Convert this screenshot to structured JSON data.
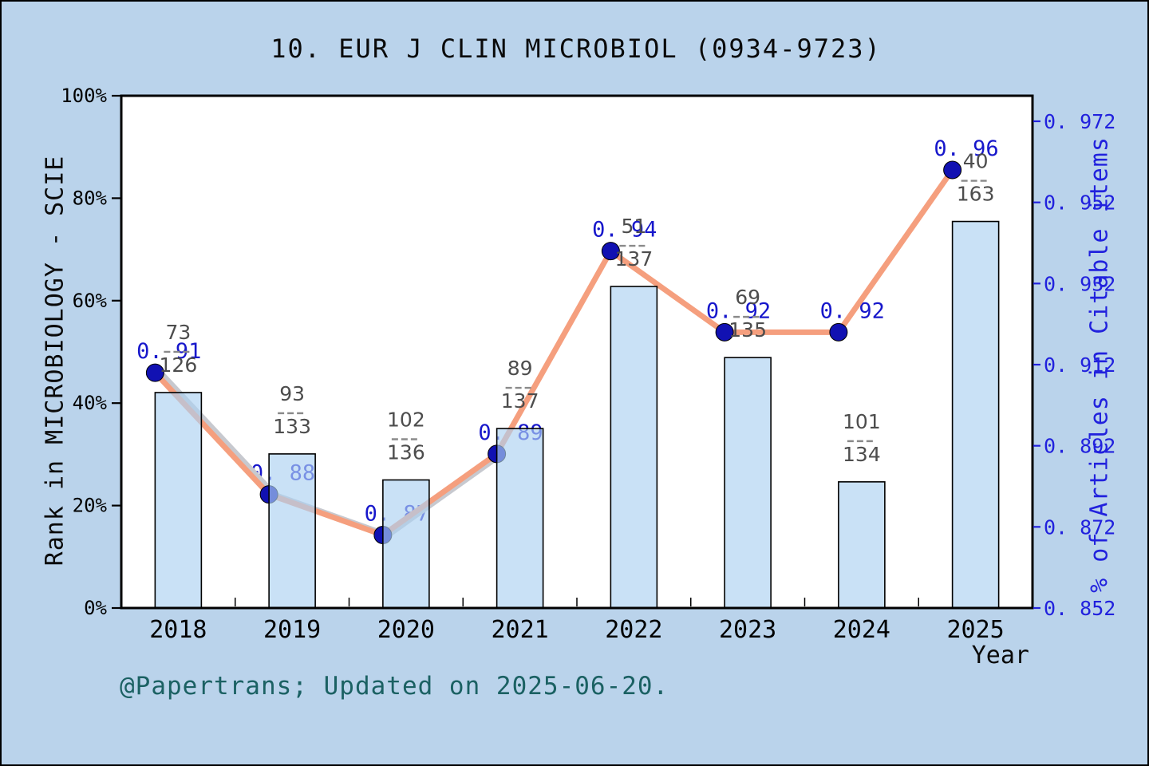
{
  "title": "10. EUR J CLIN MICROBIOL (0934-9723)",
  "footer": "@Papertrans; Updated on 2025-06-20.",
  "chart_data": {
    "type": "bar+line",
    "title": "10. EUR J CLIN MICROBIOL (0934-9723)",
    "xlabel": "Year",
    "categories": [
      "2018",
      "2019",
      "2020",
      "2021",
      "2022",
      "2023",
      "2024",
      "2025"
    ],
    "left_axis": {
      "label": "Rank in MICROBIOLOGY - SCIE",
      "tick_labels": [
        "0%",
        "20%",
        "40%",
        "60%",
        "80%",
        "100%"
      ],
      "tick_values": [
        0,
        20,
        40,
        60,
        80,
        100
      ],
      "range": [
        0,
        100
      ]
    },
    "right_axis": {
      "label": "% of Articles in Citable items",
      "tick_labels": [
        "0. 852",
        "0. 872",
        "0. 892",
        "0. 912",
        "0. 932",
        "0. 952",
        "0. 972"
      ],
      "tick_values": [
        0.852,
        0.872,
        0.892,
        0.912,
        0.932,
        0.952,
        0.972
      ],
      "range": [
        0.852,
        0.972
      ]
    },
    "series": [
      {
        "name": "rank-bars",
        "type": "bar",
        "axis": "left",
        "values_pct": [
          42.06,
          30.08,
          25.0,
          35.04,
          62.77,
          48.89,
          24.63,
          75.46
        ],
        "fractions": [
          {
            "num": "73",
            "den": "126"
          },
          {
            "num": "93",
            "den": "133"
          },
          {
            "num": "102",
            "den": "136"
          },
          {
            "num": "89",
            "den": "137"
          },
          {
            "num": "51",
            "den": "137"
          },
          {
            "num": "69",
            "den": "135"
          },
          {
            "num": "101",
            "den": "134"
          },
          {
            "num": "40",
            "den": "163"
          }
        ]
      },
      {
        "name": "citable-items-line",
        "type": "line",
        "axis": "right",
        "values": [
          0.91,
          0.88,
          0.87,
          0.89,
          0.94,
          0.92,
          0.92,
          0.96
        ],
        "value_labels": [
          "0. 91",
          "0. 88",
          "0. 87",
          "0. 89",
          "0. 94",
          "0. 92",
          "0. 92",
          "0. 96"
        ]
      },
      {
        "name": "underlay-silver-line",
        "type": "line",
        "axis": "right",
        "values": [
          0.91,
          0.88,
          0.87,
          0.89
        ],
        "value_labels": []
      }
    ],
    "legend": "none",
    "grid": "off"
  },
  "colors": {
    "background": "#bad3eb",
    "plot_background": "#ffffff",
    "bar_fill_rgba": "rgba(172,209,241,0.65)",
    "bar_edge": "#000000",
    "main_line": "#f59f7e",
    "underlay_line": "#c7c9cf",
    "marker": "#1111b2",
    "marker_edge": "#000000",
    "value_label_blue": "#1717cb",
    "right_axis_blue": "#2121dd",
    "fraction_gray": "#4d4d4d",
    "fraction_dash_gray": "#8a8a8a",
    "axis_black": "#000000",
    "footer_teal": "#1b6163"
  }
}
